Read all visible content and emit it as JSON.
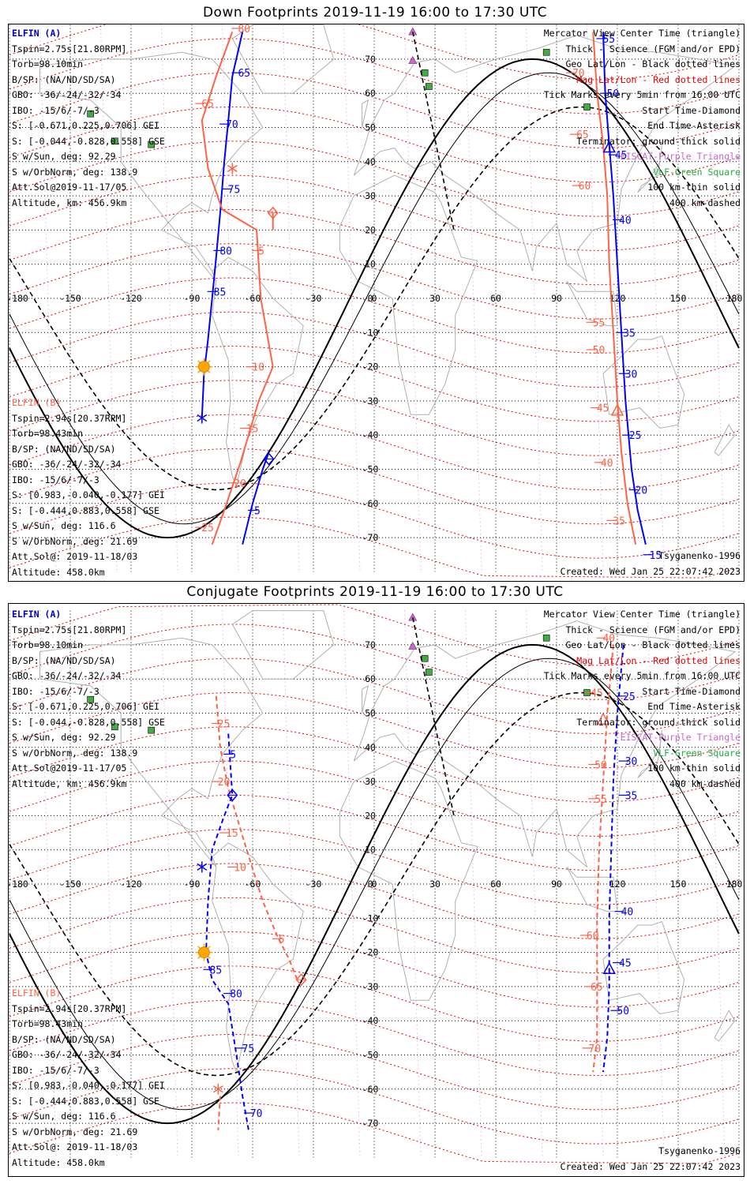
{
  "titles": {
    "down": "Down Footprints 2019-11-19 16:00 to 17:30 UTC",
    "conjugate": "Conjugate Footprints 2019-11-19 16:00 to 17:30 UTC"
  },
  "elfin_a": {
    "header": "ELFIN (A)",
    "lines": [
      "Tspin=2.75s[21.80RPM]",
      "Torb=98.10min",
      "B/SP: (NA/ND/SD/SA)",
      "GBO: -36/-24/-32/-34",
      "IBO: -15/6/-7/-3",
      "S: [-0.671,0.225,0.706] GEI",
      "S: [-0.044,-0.828,0.558] GSE",
      "S w/Sun, deg: 92.29",
      "S w/OrbNorm, deg: 138.9",
      "Att.Sol@2019-11-17/05",
      "Altitude, km: 456.9km"
    ]
  },
  "elfin_b": {
    "header": "ELFIN (B)",
    "lines": [
      "Tspin=2.94s[20.37RPM]",
      "Torb=98.43min",
      "B/SP: (NA/ND/SD/SA)",
      "GBO: -36/-24/-32/-34",
      "IBO: -15/6/-7/-3",
      "S: [0.983,-0.040,-0.177] GEI",
      "S: [-0.444,0.883,0.558] GSE",
      "S w/Sun, deg: 116.6",
      "S w/OrbNorm, deg: 21.69",
      "Att.Sol@: 2019-11-18/03",
      "Altitude: 458.0km"
    ]
  },
  "legend": {
    "lines": [
      {
        "text": "Mercator View Center Time (triangle)",
        "cls": ""
      },
      {
        "text": "Thick - Science (FGM and/or EPD)",
        "cls": ""
      },
      {
        "text": "Geo Lat/Lon - Black dotted lines",
        "cls": ""
      },
      {
        "text": "Mag Lat/Lon - Red dotted lines",
        "cls": "mag"
      },
      {
        "text": "Tick Marks every 5min from 16:00 UTC",
        "cls": ""
      },
      {
        "text": "Start Time-Diamond",
        "cls": ""
      },
      {
        "text": "End Time-Asterisk",
        "cls": ""
      },
      {
        "text": "Terminator: ground-thick solid",
        "cls": ""
      },
      {
        "text": "EISCAT-Purple Triangle",
        "cls": "elf"
      },
      {
        "text": "VLF-Green Square",
        "cls": "vlf"
      },
      {
        "text": "100 km-thin solid",
        "cls": ""
      },
      {
        "text": "400 km-dashed",
        "cls": ""
      }
    ]
  },
  "footer": {
    "model": "Tsyganenko-1996",
    "created": "Created: Wed Jan 25 22:07:42 2023"
  },
  "axes": {
    "lon_ticks": [
      -180,
      -150,
      -120,
      -90,
      -60,
      -30,
      0,
      30,
      60,
      90,
      120,
      150,
      180
    ],
    "lon_tick_labels": [
      "-180",
      "-150",
      "-120",
      "-90",
      "-60",
      "-30",
      "0",
      "30",
      "60",
      "90",
      "120",
      "150",
      "180"
    ],
    "lat_ticks": [
      70,
      60,
      50,
      40,
      30,
      20,
      10,
      0,
      -10,
      -20,
      -30,
      -40,
      -50,
      -60,
      -70
    ],
    "lat_tick_labels": [
      "70",
      "60",
      "50",
      "40",
      "30",
      "20",
      "10",
      "0",
      "-10",
      "-20",
      "-30",
      "-40",
      "-50",
      "-60",
      "-70"
    ]
  },
  "colors": {
    "elfin_a": "#0000ff",
    "elfin_b": "#ff6347",
    "mag_grid": "#e00000",
    "geo_grid": "#000000",
    "terminator": "#000000",
    "coast": "#b0b0b0",
    "eiscat": "#cc66cc",
    "vlf": "#44aa44",
    "sun": "#ffa500"
  },
  "stations": {
    "eiscat": [
      [
        19,
        78
      ],
      [
        19,
        69.6
      ]
    ],
    "vlf": [
      [
        -140,
        54
      ],
      [
        -128,
        46
      ],
      [
        -110,
        45
      ],
      [
        25,
        66
      ],
      [
        27,
        62
      ],
      [
        85,
        72
      ],
      [
        105,
        56
      ]
    ]
  },
  "map_panels": [
    {
      "key": "down",
      "tracks": [
        {
          "sat": "A",
          "dashed": false,
          "pts": [
            [
              -65,
              78
            ],
            [
              -70,
              65
            ],
            [
              -72,
              52
            ],
            [
              -74,
              40
            ],
            [
              -76,
              25
            ],
            [
              -78,
              12
            ],
            [
              -80,
              0
            ],
            [
              -82,
              -12
            ],
            [
              -84,
              -22
            ],
            [
              -85,
              -35
            ]
          ]
        },
        {
          "sat": "B",
          "dashed": false,
          "pts": [
            [
              -70,
              78
            ],
            [
              -78,
              65
            ],
            [
              -85,
              52
            ],
            [
              -82,
              38
            ],
            [
              -75,
              26
            ],
            [
              -58,
              20
            ],
            [
              -56,
              0
            ],
            [
              -50,
              -20
            ],
            [
              -57,
              -30
            ],
            [
              -66,
              -48
            ],
            [
              -74,
              -62
            ],
            [
              -80,
              -72
            ]
          ]
        },
        {
          "sat": "B",
          "dashed": false,
          "pts": [
            [
              -50,
              25
            ],
            [
              -50,
              20
            ]
          ]
        },
        {
          "sat": "A",
          "dashed": false,
          "pts": [
            [
              -52,
              -45
            ],
            [
              -55,
              -50
            ],
            [
              -60,
              -60
            ],
            [
              -65,
              -72
            ]
          ]
        },
        {
          "sat": "A",
          "dashed": false,
          "pts": [
            [
              113,
              78
            ],
            [
              114,
              60
            ],
            [
              116,
              45
            ],
            [
              118,
              30
            ],
            [
              120,
              10
            ],
            [
              122,
              -10
            ],
            [
              124,
              -30
            ],
            [
              127,
              -50
            ],
            [
              130,
              -62
            ],
            [
              134,
              -72
            ]
          ]
        },
        {
          "sat": "B",
          "dashed": false,
          "pts": [
            [
              108,
              78
            ],
            [
              110,
              60
            ],
            [
              113,
              45
            ],
            [
              115,
              30
            ],
            [
              116,
              10
            ],
            [
              118,
              -10
            ],
            [
              120,
              -30
            ],
            [
              122,
              -45
            ],
            [
              125,
              -60
            ],
            [
              129,
              -72
            ]
          ]
        }
      ],
      "labels": [
        {
          "sat": "A",
          "t": "65",
          "lon": -68,
          "lat": 66
        },
        {
          "sat": "A",
          "t": "70",
          "lon": -74,
          "lat": 51
        },
        {
          "sat": "A",
          "t": "75",
          "lon": -73,
          "lat": 32
        },
        {
          "sat": "A",
          "t": "80",
          "lon": -77,
          "lat": 14
        },
        {
          "sat": "A",
          "t": "85",
          "lon": -80,
          "lat": 2
        },
        {
          "sat": "A",
          "t": "5",
          "lon": -60,
          "lat": -62
        },
        {
          "sat": "A",
          "t": "55",
          "lon": 112,
          "lat": 76
        },
        {
          "sat": "A",
          "t": "50",
          "lon": 114,
          "lat": 60
        },
        {
          "sat": "A",
          "t": "45",
          "lon": 118,
          "lat": 42
        },
        {
          "sat": "A",
          "t": "40",
          "lon": 120,
          "lat": 23
        },
        {
          "sat": "A",
          "t": "35",
          "lon": 122,
          "lat": -10
        },
        {
          "sat": "A",
          "t": "30",
          "lon": 123,
          "lat": -22
        },
        {
          "sat": "A",
          "t": "25",
          "lon": 125,
          "lat": -40
        },
        {
          "sat": "A",
          "t": "20",
          "lon": 128,
          "lat": -56
        },
        {
          "sat": "A",
          "t": "15",
          "lon": 135,
          "lat": -75
        },
        {
          "sat": "B",
          "t": "80",
          "lon": -68,
          "lat": 79
        },
        {
          "sat": "B",
          "t": "65",
          "lon": -86,
          "lat": 57
        },
        {
          "sat": "B",
          "t": "5",
          "lon": -58,
          "lat": 14
        },
        {
          "sat": "B",
          "t": "10",
          "lon": -61,
          "lat": -20
        },
        {
          "sat": "B",
          "t": "15",
          "lon": -64,
          "lat": -38
        },
        {
          "sat": "B",
          "t": "20",
          "lon": -70,
          "lat": -54
        },
        {
          "sat": "B",
          "t": "25",
          "lon": -86,
          "lat": -67
        },
        {
          "sat": "B",
          "t": "70",
          "lon": 97,
          "lat": 66
        },
        {
          "sat": "B",
          "t": "65",
          "lon": 99,
          "lat": 48
        },
        {
          "sat": "B",
          "t": "60",
          "lon": 100,
          "lat": 33
        },
        {
          "sat": "B",
          "t": "55",
          "lon": 107,
          "lat": -7
        },
        {
          "sat": "B",
          "t": "50",
          "lon": 107,
          "lat": -15
        },
        {
          "sat": "B",
          "t": "45",
          "lon": 109,
          "lat": -32
        },
        {
          "sat": "B",
          "t": "40",
          "lon": 111,
          "lat": -48
        },
        {
          "sat": "B",
          "t": "35",
          "lon": 117,
          "lat": -65
        }
      ],
      "markers": [
        {
          "kind": "triangle",
          "sat": "A",
          "lon": 116,
          "lat": 44
        },
        {
          "kind": "diamond",
          "sat": "A",
          "lon": -52,
          "lat": -47
        },
        {
          "kind": "asterisk",
          "sat": "A",
          "lon": -85,
          "lat": -35
        },
        {
          "kind": "diamond",
          "sat": "B",
          "lon": -50,
          "lat": 25
        },
        {
          "kind": "asterisk",
          "sat": "B",
          "lon": -70,
          "lat": 38
        },
        {
          "kind": "triangle",
          "sat": "B",
          "lon": 120,
          "lat": -33
        },
        {
          "kind": "sun",
          "sat": "A",
          "lon": -84,
          "lat": -20
        }
      ]
    },
    {
      "key": "conjugate",
      "tracks": [
        {
          "sat": "B",
          "dashed": true,
          "pts": [
            [
              -78,
              55
            ],
            [
              -76,
              40
            ],
            [
              -72,
              28
            ],
            [
              -65,
              14
            ],
            [
              -55,
              -5
            ],
            [
              -48,
              -15
            ],
            [
              -42,
              -22
            ],
            [
              -38,
              -28
            ]
          ]
        },
        {
          "sat": "A",
          "dashed": true,
          "pts": [
            [
              -72,
              44
            ],
            [
              -70,
              26
            ],
            [
              -74,
              20
            ],
            [
              -80,
              10
            ],
            [
              -82,
              -5
            ],
            [
              -83,
              -20
            ],
            [
              -80,
              -28
            ],
            [
              -72,
              -35
            ],
            [
              -68,
              -50
            ],
            [
              -65,
              -62
            ],
            [
              -62,
              -72
            ]
          ]
        },
        {
          "sat": "B",
          "dashed": true,
          "pts": [
            [
              -76,
              -62
            ],
            [
              -77,
              -72
            ]
          ]
        },
        {
          "sat": "A",
          "dashed": true,
          "pts": [
            [
              123,
              70
            ],
            [
              120,
              50
            ],
            [
              118,
              30
            ],
            [
              117,
              10
            ],
            [
              116,
              -10
            ],
            [
              116,
              -30
            ],
            [
              115,
              -45
            ],
            [
              113,
              -55
            ]
          ]
        },
        {
          "sat": "B",
          "dashed": true,
          "pts": [
            [
              118,
              70
            ],
            [
              115,
              50
            ],
            [
              113,
              30
            ],
            [
              111,
              10
            ],
            [
              110,
              -10
            ],
            [
              110,
              -30
            ],
            [
              110,
              -45
            ],
            [
              108,
              -55
            ]
          ]
        }
      ],
      "labels": [
        {
          "sat": "B",
          "t": "25",
          "lon": -78,
          "lat": 47
        },
        {
          "sat": "B",
          "t": "20",
          "lon": -78,
          "lat": 30
        },
        {
          "sat": "B",
          "t": "15",
          "lon": -74,
          "lat": 15
        },
        {
          "sat": "B",
          "t": "10",
          "lon": -70,
          "lat": 5
        },
        {
          "sat": "B",
          "t": "5",
          "lon": -48,
          "lat": -16
        },
        {
          "sat": "A",
          "t": "5",
          "lon": -72,
          "lat": 38
        },
        {
          "sat": "A",
          "t": "85",
          "lon": -82,
          "lat": -25
        },
        {
          "sat": "A",
          "t": "80",
          "lon": -72,
          "lat": -32
        },
        {
          "sat": "A",
          "t": "75",
          "lon": -66,
          "lat": -48
        },
        {
          "sat": "A",
          "t": "70",
          "lon": -62,
          "lat": -67
        },
        {
          "sat": "B",
          "t": "40",
          "lon": 112,
          "lat": 72
        },
        {
          "sat": "B",
          "t": "45",
          "lon": 106,
          "lat": 56
        },
        {
          "sat": "B",
          "t": "50",
          "lon": 108,
          "lat": 35
        },
        {
          "sat": "B",
          "t": "55",
          "lon": 108,
          "lat": 25
        },
        {
          "sat": "B",
          "t": "60",
          "lon": 104,
          "lat": -15
        },
        {
          "sat": "B",
          "t": "65",
          "lon": 106,
          "lat": -30
        },
        {
          "sat": "B",
          "t": "70",
          "lon": 105,
          "lat": -48
        },
        {
          "sat": "A",
          "t": "25",
          "lon": 122,
          "lat": 55
        },
        {
          "sat": "A",
          "t": "30",
          "lon": 123,
          "lat": 36
        },
        {
          "sat": "A",
          "t": "35",
          "lon": 123,
          "lat": 26
        },
        {
          "sat": "A",
          "t": "40",
          "lon": 121,
          "lat": -8
        },
        {
          "sat": "A",
          "t": "45",
          "lon": 120,
          "lat": -23
        },
        {
          "sat": "A",
          "t": "50",
          "lon": 119,
          "lat": -37
        }
      ],
      "markers": [
        {
          "kind": "diamond",
          "sat": "A",
          "lon": -70,
          "lat": 26
        },
        {
          "kind": "asterisk",
          "sat": "A",
          "lon": -85,
          "lat": 5
        },
        {
          "kind": "diamond",
          "sat": "B",
          "lon": -36,
          "lat": -28
        },
        {
          "kind": "asterisk",
          "sat": "B",
          "lon": -77,
          "lat": -60
        },
        {
          "kind": "triangle",
          "sat": "B",
          "lon": 113,
          "lat": 48
        },
        {
          "kind": "triangle",
          "sat": "A",
          "lon": 116,
          "lat": -25
        },
        {
          "kind": "sun",
          "sat": "A",
          "lon": -84,
          "lat": -20
        }
      ]
    }
  ]
}
